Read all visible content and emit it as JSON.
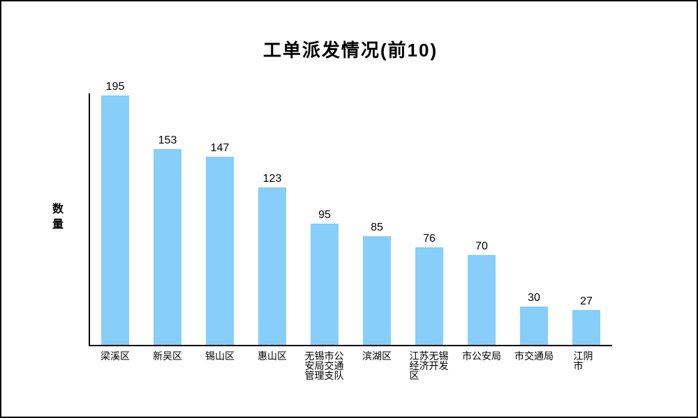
{
  "page": {
    "background_color": "#ffffff",
    "border_color": "#000000"
  },
  "chart_data": {
    "type": "bar",
    "title": "工单派发情况(前10)",
    "xlabel": "",
    "ylabel": "数量",
    "categories": [
      "梁溪区",
      "新吴区",
      "锡山区",
      "惠山区",
      "无锡市公安局交通管理支队",
      "滨湖区",
      "江苏无锡经济开发区",
      "市公安局",
      "市交通局",
      "江阴市"
    ],
    "values": [
      195,
      153,
      147,
      123,
      95,
      85,
      76,
      70,
      30,
      27
    ],
    "ylim": [
      0,
      195
    ],
    "bar_color": "#87CEFA",
    "axis_color": "#000000",
    "text_color": "#000000",
    "grid": false,
    "legend": false,
    "value_labels_shown": true
  }
}
